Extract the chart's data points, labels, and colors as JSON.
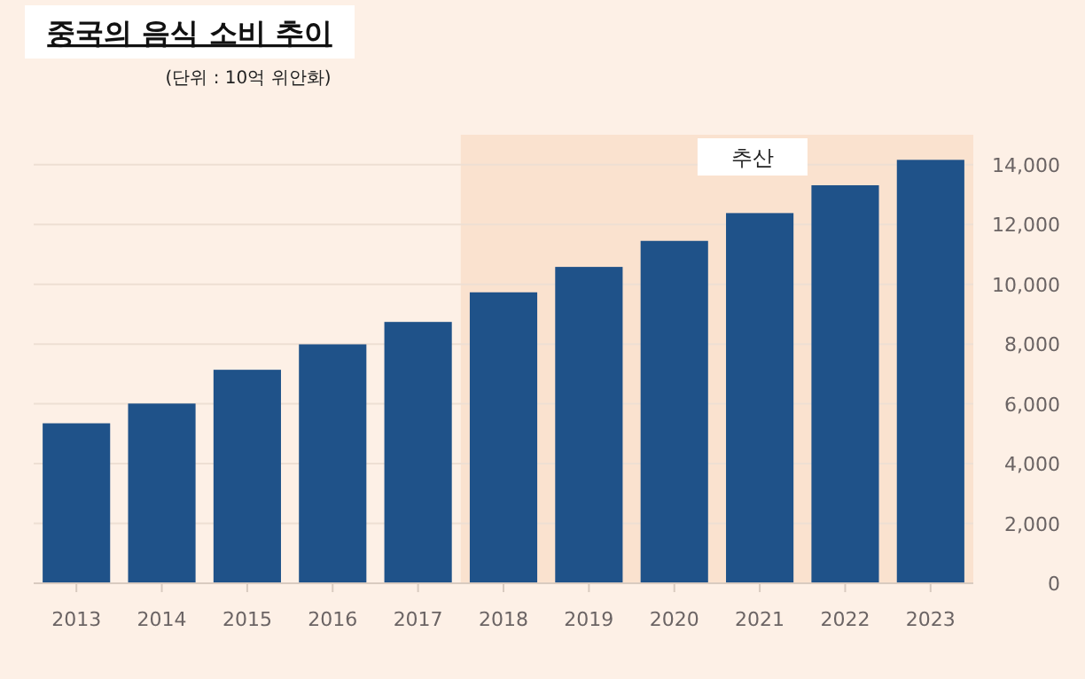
{
  "chart_data": {
    "type": "bar",
    "title": "중국의 음식 소비 추이",
    "subtitle": "(단위 :  10억 위안화)",
    "categories": [
      "2013",
      "2014",
      "2015",
      "2016",
      "2017",
      "2018",
      "2019",
      "2020",
      "2021",
      "2022",
      "2023"
    ],
    "values": [
      5350,
      6010,
      7140,
      7990,
      8740,
      9730,
      10580,
      11450,
      12380,
      13310,
      14160
    ],
    "color": "#1f5289",
    "ylim": [
      0,
      15000
    ],
    "yticks": [
      0,
      {
        "value": 2000,
        "label": "2,000"
      },
      {
        "value": 4000,
        "label": "4,000"
      },
      {
        "value": 6000,
        "label": "6,000"
      },
      {
        "value": 8000,
        "label": "8,000"
      },
      {
        "value": 10000,
        "label": "10,000"
      },
      {
        "value": 12000,
        "label": "12,000"
      },
      {
        "value": 14000,
        "label": "14,000"
      }
    ],
    "grid": "y",
    "bands": [
      {
        "axis": "x",
        "from": "2018",
        "to": "2023",
        "label": "추산",
        "color": "#fae2cf"
      }
    ]
  }
}
